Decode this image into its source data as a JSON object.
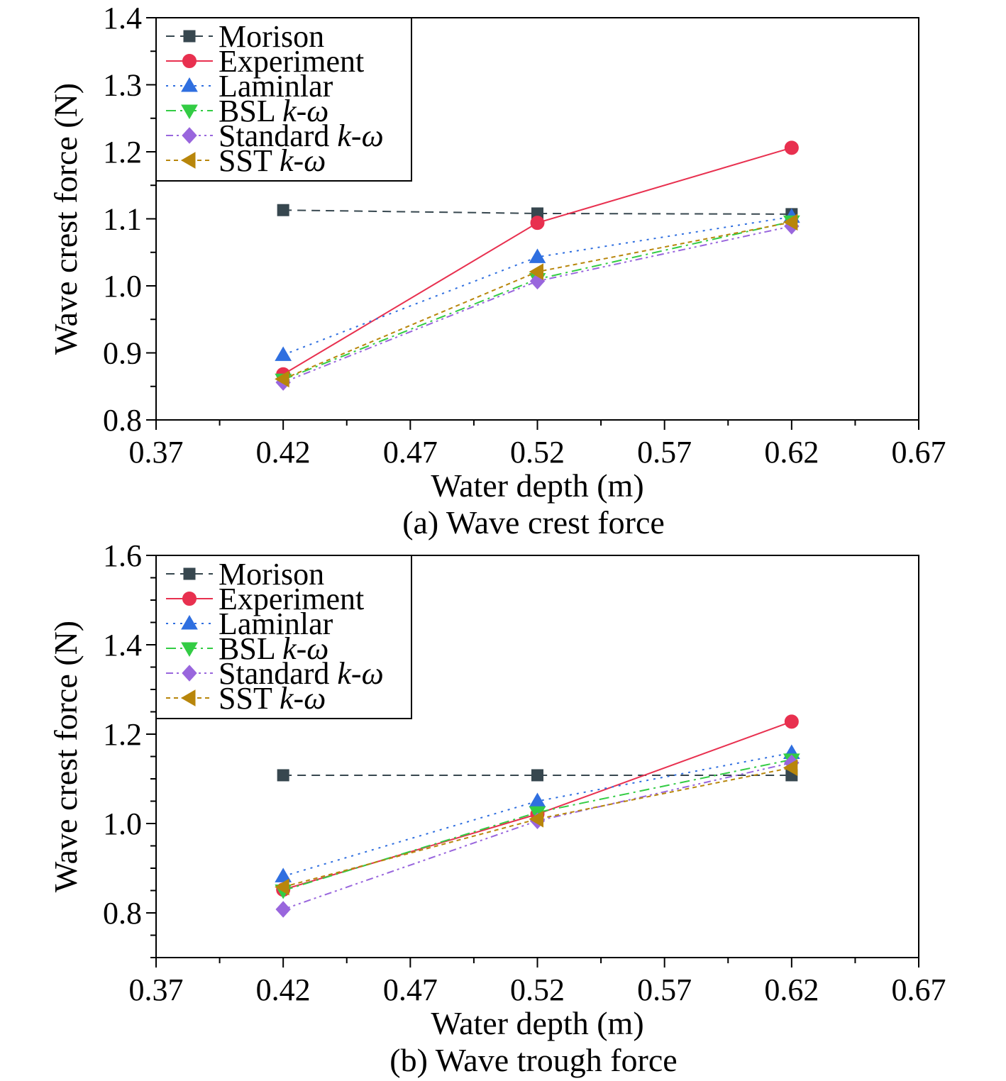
{
  "chart_data": [
    {
      "type": "line",
      "caption": "(a) Wave crest force",
      "xlabel": "Water depth (m)",
      "ylabel": "Wave crest force (N)",
      "xlim": [
        0.37,
        0.67
      ],
      "ylim": [
        0.8,
        1.4
      ],
      "xticks": [
        "0.37",
        "0.42",
        "0.47",
        "0.52",
        "0.57",
        "0.62",
        "0.67"
      ],
      "yticks": [
        "0.8",
        "0.9",
        "1.0",
        "1.1",
        "1.2",
        "1.3",
        "1.4"
      ],
      "x": [
        0.42,
        0.52,
        0.62
      ],
      "legend_position": "top-left",
      "series": [
        {
          "name": "Morison",
          "name_main": "Morison",
          "name_italic": "",
          "marker": "square",
          "color": "#37474f",
          "dash": "dashed",
          "values": [
            1.113,
            1.108,
            1.107
          ]
        },
        {
          "name": "Experiment",
          "name_main": "Experiment",
          "name_italic": "",
          "marker": "circle",
          "color": "#e8304f",
          "dash": "solid",
          "values": [
            0.868,
            1.094,
            1.206
          ]
        },
        {
          "name": "Laminlar",
          "name_main": "Laminlar",
          "name_italic": "",
          "marker": "triangle-up",
          "color": "#2f6fe0",
          "dash": "dotted",
          "values": [
            0.897,
            1.043,
            1.103
          ]
        },
        {
          "name": "BSL k-ω",
          "name_main": "BSL ",
          "name_italic": "k-ω",
          "marker": "triangle-down",
          "color": "#33cc44",
          "dash": "dashdot",
          "values": [
            0.86,
            1.01,
            1.096
          ]
        },
        {
          "name": "Standard k-ω",
          "name_main": "Standard ",
          "name_italic": "k-ω",
          "marker": "diamond",
          "color": "#9966dd",
          "dash": "dashdotdot",
          "values": [
            0.856,
            1.007,
            1.089
          ]
        },
        {
          "name": "SST k-ω",
          "name_main": "SST ",
          "name_italic": "k-ω",
          "marker": "triangle-left",
          "color": "#b8860b",
          "dash": "shortdash",
          "values": [
            0.861,
            1.021,
            1.095
          ]
        }
      ]
    },
    {
      "type": "line",
      "caption": "(b) Wave trough force",
      "xlabel": "Water depth (m)",
      "ylabel": "Wave crest force (N)",
      "xlim": [
        0.37,
        0.67
      ],
      "ylim": [
        0.7,
        1.6
      ],
      "xticks": [
        "0.37",
        "0.42",
        "0.47",
        "0.52",
        "0.57",
        "0.62",
        "0.67"
      ],
      "yticks": [
        "0.8",
        "1.0",
        "1.2",
        "1.4",
        "1.6"
      ],
      "x": [
        0.42,
        0.52,
        0.62
      ],
      "legend_position": "top-left",
      "series": [
        {
          "name": "Morison",
          "name_main": "Morison",
          "name_italic": "",
          "marker": "square",
          "color": "#37474f",
          "dash": "dashed",
          "values": [
            1.108,
            1.108,
            1.108
          ]
        },
        {
          "name": "Experiment",
          "name_main": "Experiment",
          "name_italic": "",
          "marker": "circle",
          "color": "#e8304f",
          "dash": "solid",
          "values": [
            0.852,
            1.021,
            1.228
          ]
        },
        {
          "name": "Laminlar",
          "name_main": "Laminlar",
          "name_italic": "",
          "marker": "triangle-up",
          "color": "#2f6fe0",
          "dash": "dotted",
          "values": [
            0.882,
            1.05,
            1.158
          ]
        },
        {
          "name": "BSL k-ω",
          "name_main": "BSL ",
          "name_italic": "k-ω",
          "marker": "triangle-down",
          "color": "#33cc44",
          "dash": "dashdot",
          "values": [
            0.85,
            1.025,
            1.143
          ]
        },
        {
          "name": "Standard k-ω",
          "name_main": "Standard ",
          "name_italic": "k-ω",
          "marker": "diamond",
          "color": "#9966dd",
          "dash": "dashdotdot",
          "values": [
            0.808,
            1.006,
            1.136
          ]
        },
        {
          "name": "SST k-ω",
          "name_main": "SST ",
          "name_italic": "k-ω",
          "marker": "triangle-left",
          "color": "#b8860b",
          "dash": "shortdash",
          "values": [
            0.858,
            1.01,
            1.125
          ]
        }
      ]
    }
  ]
}
